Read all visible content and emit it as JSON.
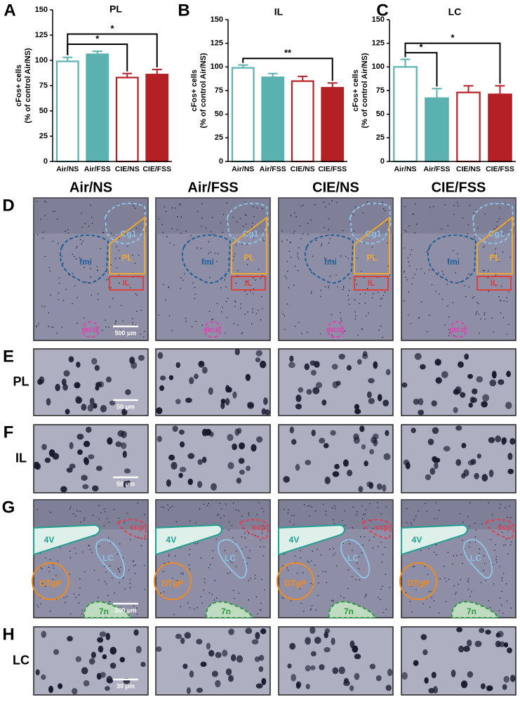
{
  "chart_data": [
    {
      "type": "bar",
      "panel": "A",
      "title": "PL",
      "ylabel": [
        "cFos+ cells",
        "(% of control Air/NS)"
      ],
      "categories": [
        "Air/NS",
        "Air/FSS",
        "CIE/NS",
        "CIE/FSS"
      ],
      "values": [
        99,
        106,
        83,
        86
      ],
      "errors": [
        4,
        3,
        4,
        5
      ],
      "colors": [
        "#5bb0b0",
        "#5bb0b0",
        "#b52025",
        "#b52025"
      ],
      "filled": [
        false,
        true,
        false,
        true
      ],
      "ylim": [
        0,
        150
      ],
      "yticks": [
        0,
        25,
        50,
        75,
        100,
        125,
        150
      ],
      "significance": [
        {
          "from": 0,
          "to": 2,
          "label": "*"
        },
        {
          "from": 0,
          "to": 3,
          "label": "*"
        }
      ]
    },
    {
      "type": "bar",
      "panel": "B",
      "title": "IL",
      "ylabel": [
        "cFos+ cells",
        "(% of control Air/NS)"
      ],
      "categories": [
        "Air/NS",
        "Air/FSS",
        "CIE/NS",
        "CIE/FSS"
      ],
      "values": [
        99,
        89,
        85,
        78
      ],
      "errors": [
        3,
        4,
        5,
        5
      ],
      "colors": [
        "#5bb0b0",
        "#5bb0b0",
        "#b52025",
        "#b52025"
      ],
      "filled": [
        false,
        true,
        false,
        true
      ],
      "ylim": [
        0,
        150
      ],
      "yticks": [
        0,
        25,
        50,
        75,
        100,
        125,
        150
      ],
      "significance": [
        {
          "from": 0,
          "to": 3,
          "label": "**"
        }
      ]
    },
    {
      "type": "bar",
      "panel": "C",
      "title": "LC",
      "ylabel": [
        "cFos+ cells",
        "(% of control Air/NS)"
      ],
      "categories": [
        "Air/NS",
        "Air/FSS",
        "CIE/NS",
        "CIE/FSS"
      ],
      "values": [
        100,
        67,
        73,
        71
      ],
      "errors": [
        8,
        10,
        7,
        9
      ],
      "colors": [
        "#5bb0b0",
        "#5bb0b0",
        "#b52025",
        "#b52025"
      ],
      "filled": [
        false,
        true,
        false,
        true
      ],
      "ylim": [
        0,
        150
      ],
      "yticks": [
        0,
        25,
        50,
        75,
        100,
        125,
        150
      ],
      "significance": [
        {
          "from": 0,
          "to": 1,
          "label": "*"
        },
        {
          "from": 0,
          "to": 3,
          "label": "*"
        }
      ]
    }
  ],
  "column_headers": [
    "Air/NS",
    "Air/FSS",
    "CIE/NS",
    "CIE/FSS"
  ],
  "rows": [
    {
      "letter": "D",
      "regions": [
        "Cg1",
        "fmi",
        "PL",
        "IL",
        "aca"
      ],
      "scale_bar": "500 μm"
    },
    {
      "letter": "E",
      "label": "PL",
      "scale_bar": "50 μm"
    },
    {
      "letter": "F",
      "label": "IL",
      "scale_bar": "50 μm"
    },
    {
      "letter": "G",
      "regions": [
        "4V",
        "scp",
        "LC",
        "DTgP",
        "7n"
      ],
      "scale_bar": "300 μm"
    },
    {
      "letter": "H",
      "label": "LC",
      "scale_bar": "30 μm"
    }
  ]
}
